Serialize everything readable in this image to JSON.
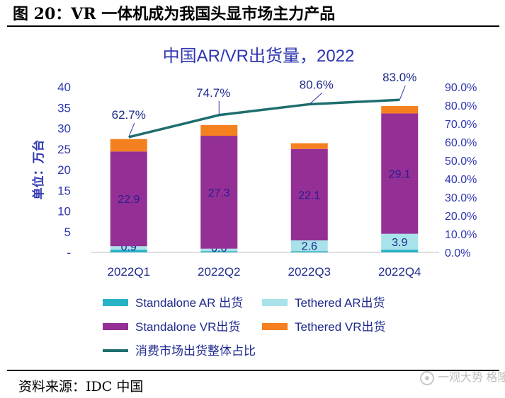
{
  "figure": {
    "title": "图 20：VR 一体机成为我国头显市场主力产品",
    "source": "资料来源：IDC 中国",
    "watermark": "一观大势 格隆汇"
  },
  "colors": {
    "standalone_ar": "#27B2C6",
    "tethered_ar": "#A8E2EA",
    "standalone_vr": "#942F96",
    "tethered_vr": "#F5801F",
    "consumer_share": "#1E6E6E",
    "title_blue": "#2E36B0",
    "axis_text": "#2E36B0"
  },
  "chart_data": {
    "type": "bar",
    "stacked": true,
    "title": "中国AR/VR出货量，2022",
    "ylabel": "单位：万台",
    "categories": [
      "2022Q1",
      "2022Q2",
      "2022Q3",
      "2022Q4"
    ],
    "ylim": [
      0,
      40
    ],
    "yticks": [
      "-",
      "5",
      "10",
      "15",
      "20",
      "25",
      "30",
      "35",
      "40"
    ],
    "y2lim": [
      0,
      90
    ],
    "y2ticks": [
      "0.0%",
      "10.0%",
      "20.0%",
      "30.0%",
      "40.0%",
      "50.0%",
      "60.0%",
      "70.0%",
      "80.0%",
      "90.0%"
    ],
    "series": [
      {
        "name": "Standalone AR 出货",
        "axis": "left",
        "values": [
          0.6,
          0.3,
          0.3,
          0.6
        ],
        "labels": [
          "",
          "",
          "",
          ""
        ]
      },
      {
        "name": "Tethered AR出货",
        "axis": "left",
        "values": [
          0.9,
          0.6,
          2.6,
          3.9
        ],
        "labels": [
          "0.9",
          "0.6",
          "2.6",
          "3.9"
        ]
      },
      {
        "name": "Standalone VR出货",
        "axis": "left",
        "values": [
          22.9,
          27.3,
          22.1,
          29.1
        ],
        "labels": [
          "22.9",
          "27.3",
          "22.1",
          "29.1"
        ]
      },
      {
        "name": "Tethered VR出货",
        "axis": "left",
        "values": [
          3.0,
          2.6,
          1.4,
          1.8
        ],
        "labels": [
          "",
          "",
          "",
          ""
        ]
      },
      {
        "name": "消费市场出货整体占比",
        "type": "line",
        "axis": "right",
        "values": [
          62.7,
          74.7,
          80.6,
          83.0
        ],
        "labels": [
          "62.7%",
          "74.7%",
          "80.6%",
          "83.0%"
        ]
      }
    ],
    "legend": {
      "placement": "bottom",
      "items": [
        "Standalone AR 出货",
        "Tethered AR出货",
        "Standalone VR出货",
        "Tethered VR出货",
        "消费市场出货整体占比"
      ]
    }
  }
}
